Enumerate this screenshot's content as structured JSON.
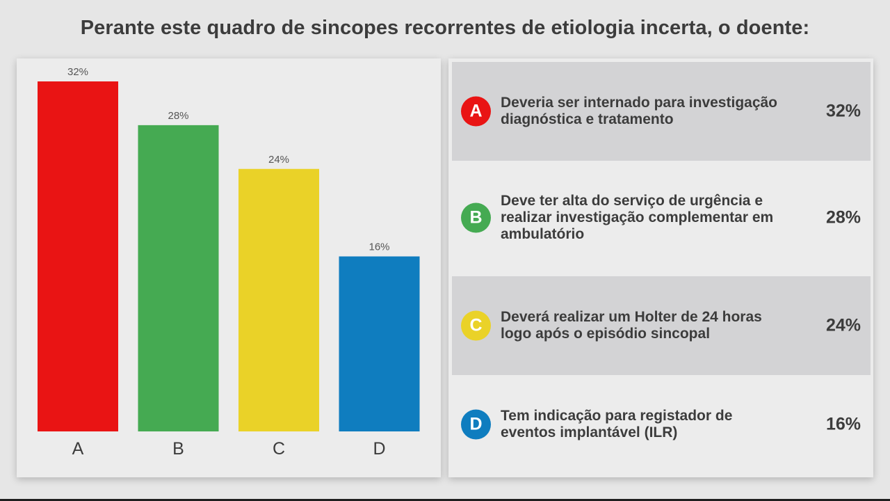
{
  "title": "Perante este quadro de sincopes recorrentes de etiologia incerta, o doente:",
  "chart_data": {
    "type": "bar",
    "categories": [
      "A",
      "B",
      "C",
      "D"
    ],
    "values": [
      32,
      28,
      24,
      16
    ],
    "value_labels": [
      "32%",
      "28%",
      "24%",
      "16%"
    ],
    "colors": [
      "#e91414",
      "#45aa52",
      "#ead228",
      "#0f7dbf"
    ],
    "title": "",
    "xlabel": "",
    "ylabel": "",
    "ylim": [
      0,
      32
    ],
    "grid": false,
    "legend": "none"
  },
  "options": [
    {
      "letter": "A",
      "text_line1": "Deveria ser internado para investigação",
      "text_line2": "diagnóstica e tratamento",
      "text_line3": "",
      "percent": "32%",
      "color": "#e91414"
    },
    {
      "letter": "B",
      "text_line1": "Deve ter alta do serviço de urgência e",
      "text_line2": "realizar investigação complementar em",
      "text_line3": "ambulatório",
      "percent": "28%",
      "color": "#45aa52"
    },
    {
      "letter": "C",
      "text_line1": "Deverá realizar um Holter de 24 horas",
      "text_line2": "logo após o episódio sincopal",
      "text_line3": "",
      "percent": "24%",
      "color": "#ead228"
    },
    {
      "letter": "D",
      "text_line1": "Tem indicação para registador de",
      "text_line2": "eventos implantável (ILR)",
      "text_line3": "",
      "percent": "16%",
      "color": "#0f7dbf"
    }
  ]
}
